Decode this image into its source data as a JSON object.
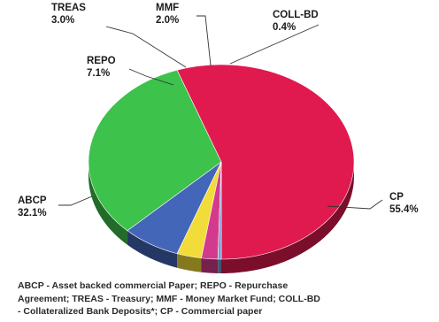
{
  "chart_data": {
    "type": "pie",
    "style": "3d",
    "title": "",
    "slices": [
      {
        "name": "CP",
        "label": "CP",
        "value_label": "55.4%",
        "value": 55.4,
        "color": "#e0194f"
      },
      {
        "name": "ABCP",
        "label": "ABCP",
        "value_label": "32.1%",
        "value": 32.1,
        "color": "#3dc24b"
      },
      {
        "name": "REPO",
        "label": "REPO",
        "value_label": "7.1%",
        "value": 7.1,
        "color": "#4466b8"
      },
      {
        "name": "TREAS",
        "label": "TREAS",
        "value_label": "3.0%",
        "value": 3.0,
        "color": "#f2dc3a"
      },
      {
        "name": "MMF",
        "label": "MMF",
        "value_label": "2.0%",
        "value": 2.0,
        "color": "#d43a8c"
      },
      {
        "name": "COLL-BD",
        "label": "COLL-BD",
        "value_label": "0.4%",
        "value": 0.4,
        "color": "#7a9ad0"
      }
    ]
  },
  "footnote": {
    "lines": [
      "ABCP - Asset backed commercial Paper; REPO - Repurchase",
      "Agreement; TREAS - Treasury; MMF - Money Market Fund; COLL-BD",
      "- Collateralized Bank Deposits*; CP - Commercial paper"
    ]
  }
}
